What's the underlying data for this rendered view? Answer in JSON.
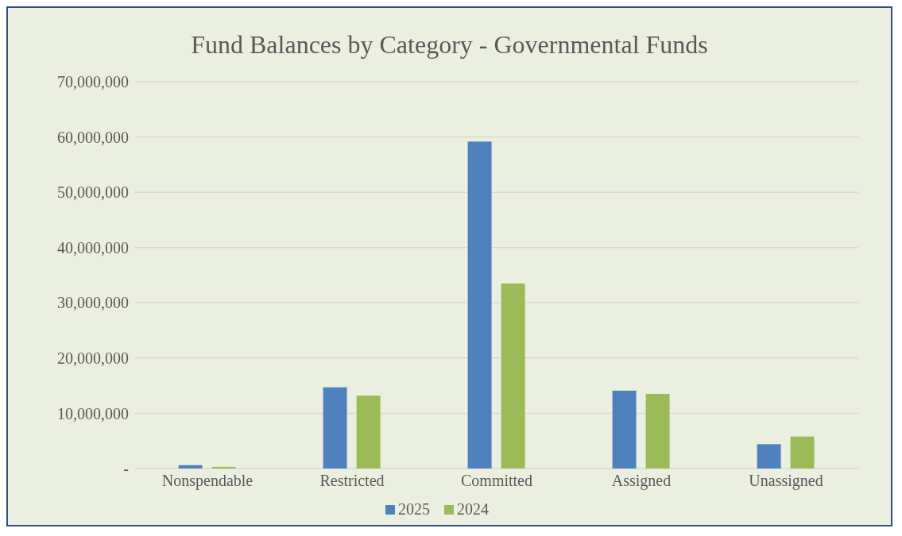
{
  "chart_data": {
    "type": "bar",
    "title": "Fund Balances by Category - Governmental Funds",
    "categories": [
      "Nonspendable",
      "Restricted",
      "Committed",
      "Assigned",
      "Unassigned"
    ],
    "series": [
      {
        "name": "2025",
        "color": "#4f81bd",
        "values": [
          600000,
          14700000,
          59200000,
          14100000,
          4400000
        ]
      },
      {
        "name": "2024",
        "color": "#9bbb59",
        "values": [
          300000,
          13200000,
          33500000,
          13500000,
          5800000
        ]
      }
    ],
    "ylim": [
      0,
      70000000
    ],
    "yticks": [
      {
        "value": 0,
        "label": "-"
      },
      {
        "value": 10000000,
        "label": "10,000,000"
      },
      {
        "value": 20000000,
        "label": "20,000,000"
      },
      {
        "value": 30000000,
        "label": "30,000,000"
      },
      {
        "value": 40000000,
        "label": "40,000,000"
      },
      {
        "value": 50000000,
        "label": "50,000,000"
      },
      {
        "value": 60000000,
        "label": "60,000,000"
      },
      {
        "value": 70000000,
        "label": "70,000,000"
      }
    ],
    "grid": "y",
    "legend": "bottom"
  }
}
